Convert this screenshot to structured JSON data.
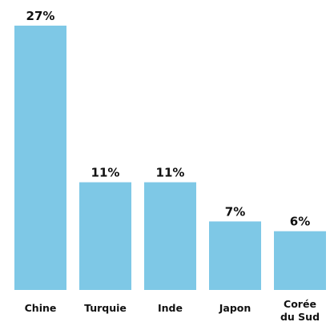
{
  "chart_data": {
    "type": "bar",
    "categories": [
      "Chine",
      "Turquie",
      "Inde",
      "Japon",
      "Corée du Sud"
    ],
    "category_label_lines": [
      [
        "Chine"
      ],
      [
        "Turquie"
      ],
      [
        "Inde"
      ],
      [
        "Japon"
      ],
      [
        "Corée",
        "du Sud"
      ]
    ],
    "values": [
      27,
      11,
      11,
      7,
      6
    ],
    "value_labels": [
      "27%",
      "11%",
      "11%",
      "7%",
      "6%"
    ],
    "unit": "%",
    "ylim": [
      0,
      27
    ],
    "grid": false,
    "legend": "none",
    "bar_color": "#7EC8E6",
    "text_color": "#111111"
  }
}
